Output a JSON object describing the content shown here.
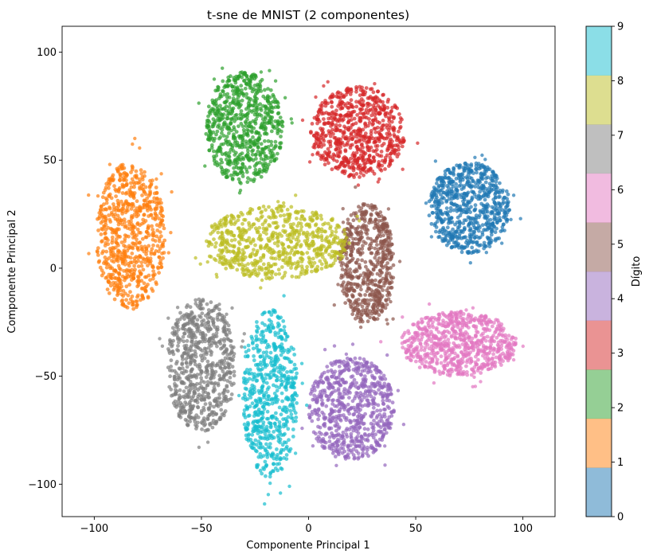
{
  "chart_data": {
    "type": "scatter",
    "title": "t-sne de MNIST (2 componentes)",
    "xlabel": "Componente Principal 1",
    "ylabel": "Componente Principal 2",
    "xlim": [
      -115,
      115
    ],
    "ylim": [
      -115,
      112
    ],
    "x_ticks": [
      -100,
      -50,
      0,
      50,
      100
    ],
    "x_tick_labels": [
      "−100",
      "−50",
      "0",
      "50",
      "100"
    ],
    "y_ticks": [
      -100,
      -50,
      0,
      50,
      100
    ],
    "y_tick_labels": [
      "−100",
      "−50",
      "0",
      "50",
      "100"
    ],
    "grid": false,
    "colormap": "tab10",
    "colors": [
      "#1f77b4",
      "#ff7f0e",
      "#2ca02c",
      "#d62728",
      "#9467bd",
      "#8c564b",
      "#e377c2",
      "#7f7f7f",
      "#bcbd22",
      "#17becf"
    ],
    "point_alpha": 0.7,
    "colorbar": {
      "label": "Dígito",
      "range": [
        0,
        9
      ],
      "ticks": [
        "0",
        "1",
        "2",
        "3",
        "4",
        "5",
        "6",
        "7",
        "8",
        "9"
      ],
      "alpha": 0.5
    },
    "clusters": [
      {
        "digit": 0,
        "center": [
          75,
          28
        ],
        "spread": [
          19,
          21
        ],
        "count": 700
      },
      {
        "digit": 1,
        "center": [
          -83,
          15
        ],
        "spread": [
          16,
          34
        ],
        "count": 700
      },
      {
        "digit": 2,
        "center": [
          -30,
          65
        ],
        "spread": [
          18,
          26
        ],
        "count": 700
      },
      {
        "digit": 3,
        "center": [
          23,
          63
        ],
        "spread": [
          22,
          21
        ],
        "count": 700
      },
      {
        "digit": 4,
        "center": [
          20,
          -65
        ],
        "spread": [
          20,
          24
        ],
        "count": 700
      },
      {
        "digit": 5,
        "center": [
          27,
          2
        ],
        "spread": [
          13,
          28
        ],
        "count": 600
      },
      {
        "digit": 6,
        "center": [
          70,
          -35
        ],
        "spread": [
          27,
          15
        ],
        "count": 700
      },
      {
        "digit": 7,
        "center": [
          -50,
          -45
        ],
        "spread": [
          16,
          31
        ],
        "count": 700
      },
      {
        "digit": 8,
        "center": [
          -15,
          12
        ],
        "spread": [
          34,
          17
        ],
        "count": 700
      },
      {
        "digit": 9,
        "center": [
          -18,
          -58
        ],
        "spread": [
          13,
          39
        ],
        "count": 600
      }
    ]
  }
}
